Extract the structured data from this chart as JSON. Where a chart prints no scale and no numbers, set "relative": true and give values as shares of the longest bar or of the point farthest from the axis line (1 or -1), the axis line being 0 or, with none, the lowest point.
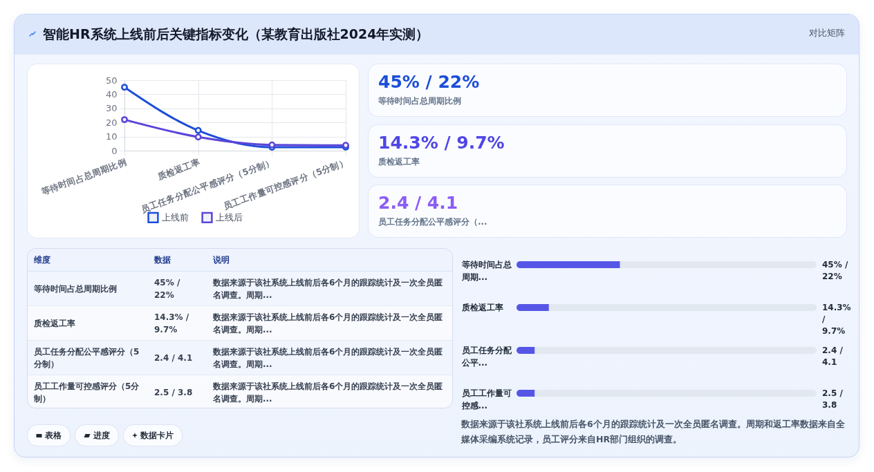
{
  "chart_data": [
    {
      "type": "line",
      "title": "智能HR系统上线前后关键指标变化（某教育出版社2024年实测）",
      "categories": [
        "等待时间占总周期比例",
        "质检返工率",
        "员工任务分配公平感评分（5分制）",
        "员工工作量可控感评分（5分制）"
      ],
      "series": [
        {
          "name": "上线前",
          "color": "#1d4ed8",
          "values": [
            45,
            14.3,
            2.4,
            2.5
          ]
        },
        {
          "name": "上线后",
          "color": "#5b45d8",
          "values": [
            22,
            9.7,
            4.1,
            3.8
          ]
        }
      ],
      "ylim": [
        0,
        50
      ],
      "yticks": [
        0,
        10,
        20,
        30,
        40,
        50
      ],
      "grid": true,
      "legend": "bottom",
      "marker": "circle",
      "line_style": "solid"
    },
    {
      "type": "other",
      "title": "对比矩阵",
      "categories": [
        "等待时间占总周期比例",
        "质检返工率",
        "员工任务分配公平感评分（..."
      ],
      "value_labels": [
        "45% / 22%",
        "14.3% / 9.7%",
        "2.4 / 4.1"
      ]
    },
    {
      "type": "other",
      "categories": [
        "等待时间占总周期比例",
        "质检返工率",
        "员工任务分配公平感评分（5分制）",
        "员工工作量可控感评分（5分制）"
      ],
      "value_labels": [
        "45% / 22%",
        "14.3% / 9.7%",
        "2.4 / 4.1",
        "2.5 / 3.8"
      ],
      "annotations": [
        "维度",
        "数据",
        "说明",
        "数据来源于该社系统上线前后各6个月的跟踪统计及一次全员匿名调查。周期...",
        "数据来源于该社系统上线前后各6个月的跟踪统计及一次全员匿名调查。周期...",
        "数据来源于该社系统上线前后各6个月的跟踪统计及一次全员匿名调查。周期...",
        "数据来源于该社系统上线前后各6个月的跟踪统计及一次全员匿名调查。周期...",
        "表格",
        "进度",
        "数据卡片"
      ]
    },
    {
      "type": "bar",
      "orientation": "horizontal",
      "stacked": true,
      "relative": true,
      "categories": [
        "等待时间占总周期...",
        "质检返工率",
        "员工任务分配公平...",
        "员工工作量可控感..."
      ],
      "series": [
        {
          "color": "#5656e6",
          "values": [
            0.345,
            0.108,
            0.061,
            0.061
          ]
        },
        {
          "color": "#e2e8f0",
          "values": [
            0.655,
            0.892,
            0.939,
            0.939
          ]
        }
      ],
      "annotations": [
        "45% / 22%",
        "14.3% / 9.7%",
        "2.4 / 4.1",
        "2.5 / 3.8",
        "数据来源于该社系统上线前后各6个月的跟踪统计及一次全员匿名调查。周期和返工率数据来自全媒体采编系统记录，员工评分来自HR部门组织的调查。"
      ]
    }
  ]
}
